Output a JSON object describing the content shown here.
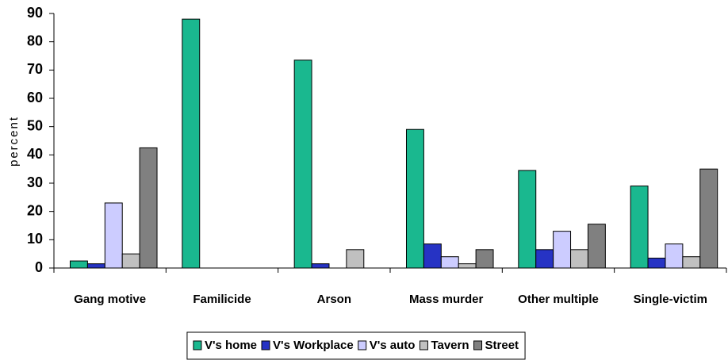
{
  "chart_data": {
    "type": "bar",
    "y_label": "percent",
    "categories": [
      "Gang motive",
      "Familicide",
      "Arson",
      "Mass murder",
      "Other multiple",
      "Single-victim"
    ],
    "series": [
      {
        "name": "V's home",
        "color": "#1ab88f",
        "values": [
          2.5,
          88,
          73.5,
          49,
          34.5,
          29
        ]
      },
      {
        "name": "V's Workplace",
        "color": "#2633c4",
        "values": [
          1.5,
          0,
          1.5,
          8.5,
          6.5,
          3.5
        ]
      },
      {
        "name": "V's auto",
        "color": "#ccccff",
        "values": [
          23,
          0,
          0,
          4,
          13,
          8.5
        ]
      },
      {
        "name": "Tavern",
        "color": "#c0c0c0",
        "values": [
          5,
          0,
          6.5,
          1.5,
          6.5,
          4
        ]
      },
      {
        "name": "Street",
        "color": "#808080",
        "values": [
          42.5,
          0,
          0,
          6.5,
          15.5,
          35
        ]
      }
    ],
    "ylim": [
      0,
      90
    ],
    "yticks": [
      0,
      10,
      20,
      30,
      40,
      50,
      60,
      70,
      80,
      90
    ],
    "grid": false,
    "legend": "bottom"
  }
}
